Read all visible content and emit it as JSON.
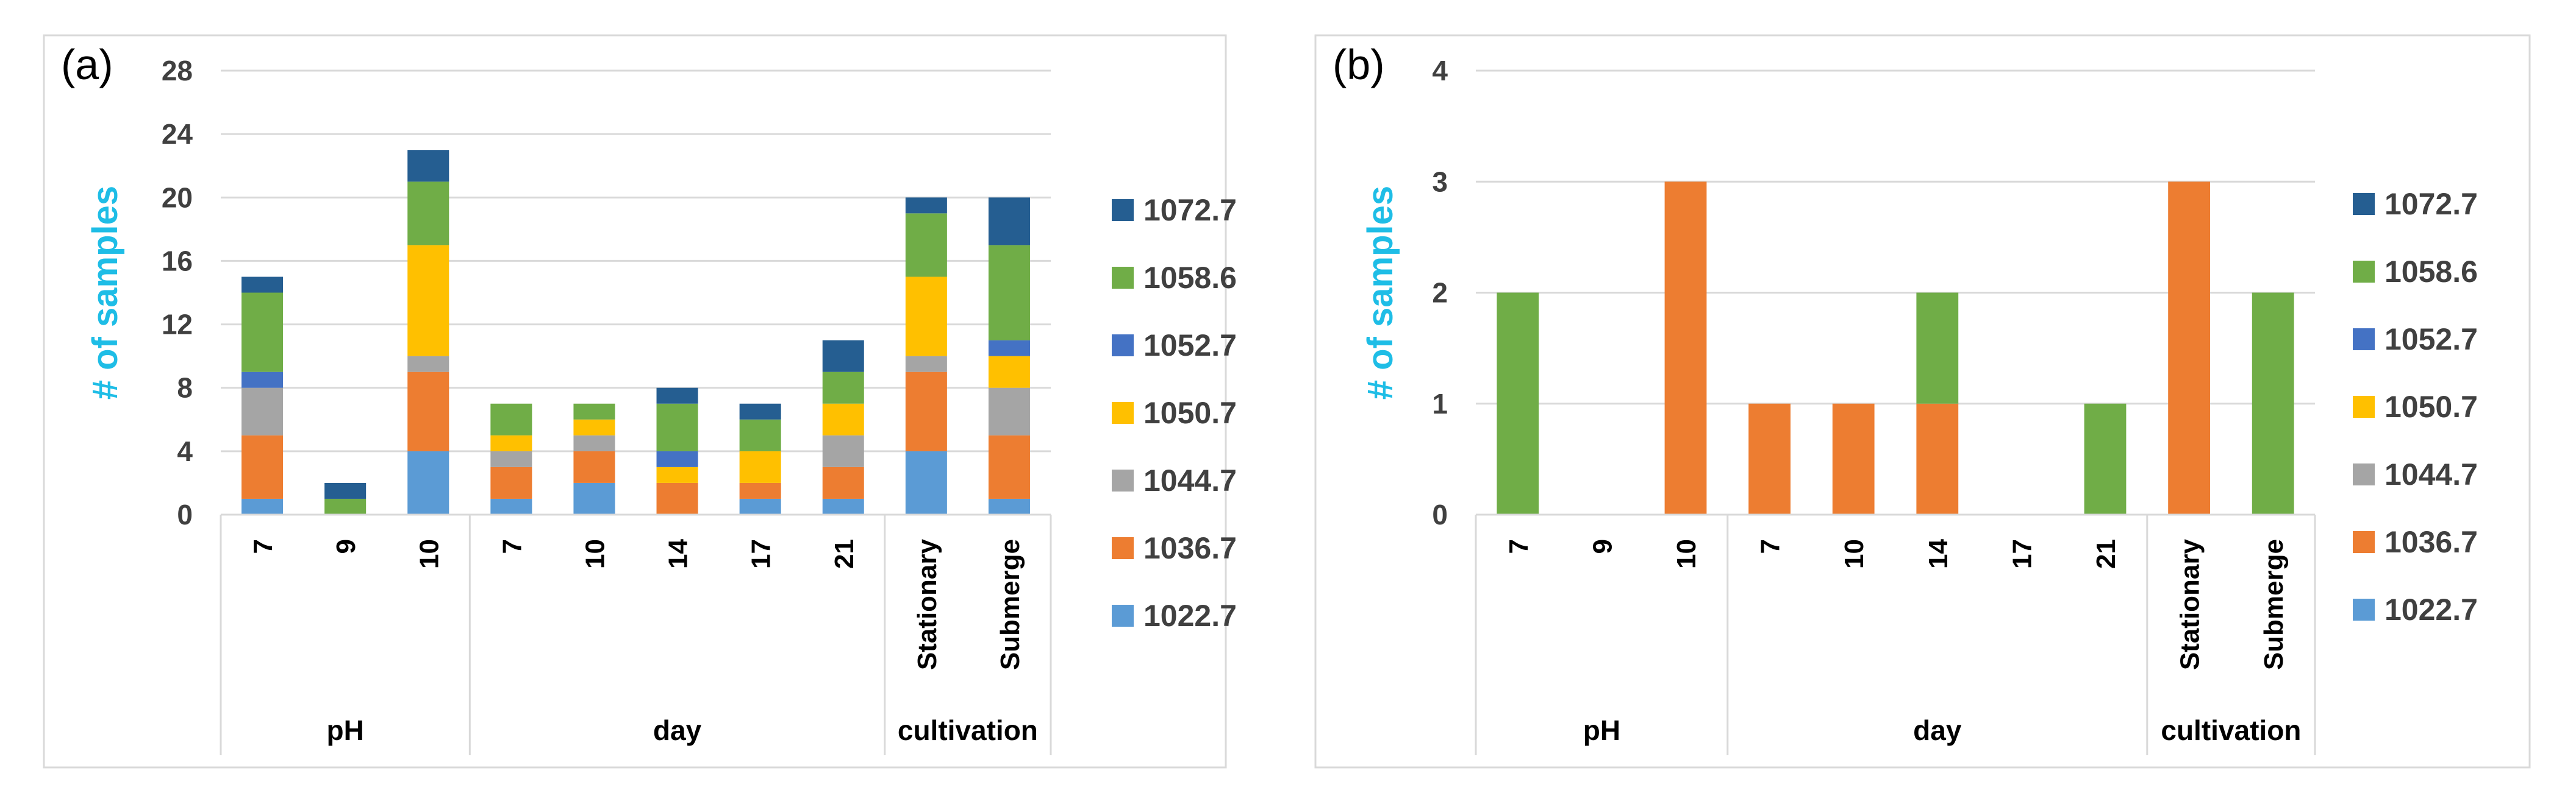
{
  "series_colors": {
    "1022.7": "#5b9bd5",
    "1036.7": "#ed7d31",
    "1044.7": "#a5a5a5",
    "1050.7": "#ffc000",
    "1052.7": "#4472c4",
    "1058.6": "#70ad47",
    "1072.7": "#255e91"
  },
  "chart_data": [
    {
      "panel_label": "(a)",
      "type": "bar",
      "stacked": true,
      "ylabel": "# of samples",
      "ylim": [
        0,
        28
      ],
      "yticks": [
        0,
        4,
        8,
        12,
        16,
        20,
        24,
        28
      ],
      "grid": true,
      "legend_position": "right",
      "categories": [
        "7",
        "9",
        "10",
        "7",
        "10",
        "14",
        "17",
        "21",
        "Stationary",
        "Submerge"
      ],
      "groups": [
        {
          "label": "pH",
          "span": 3
        },
        {
          "label": "day",
          "span": 5
        },
        {
          "label": "cultivation",
          "span": 2
        }
      ],
      "series": [
        {
          "name": "1022.7",
          "values": [
            1,
            0,
            4,
            1,
            2,
            0,
            1,
            1,
            4,
            1
          ]
        },
        {
          "name": "1036.7",
          "values": [
            4,
            0,
            5,
            2,
            2,
            2,
            1,
            2,
            5,
            4
          ]
        },
        {
          "name": "1044.7",
          "values": [
            3,
            0,
            1,
            1,
            1,
            0,
            0,
            2,
            1,
            3
          ]
        },
        {
          "name": "1050.7",
          "values": [
            0,
            0,
            7,
            1,
            1,
            1,
            2,
            2,
            5,
            2
          ]
        },
        {
          "name": "1052.7",
          "values": [
            1,
            0,
            0,
            0,
            0,
            1,
            0,
            0,
            0,
            1
          ]
        },
        {
          "name": "1058.6",
          "values": [
            5,
            1,
            4,
            2,
            1,
            3,
            2,
            2,
            4,
            6
          ]
        },
        {
          "name": "1072.7",
          "values": [
            1,
            1,
            2,
            0,
            0,
            1,
            1,
            2,
            1,
            3
          ]
        }
      ],
      "legend_order": [
        "1072.7",
        "1058.6",
        "1052.7",
        "1050.7",
        "1044.7",
        "1036.7",
        "1022.7"
      ]
    },
    {
      "panel_label": "(b)",
      "type": "bar",
      "stacked": true,
      "ylabel": "# of samples",
      "ylim": [
        0,
        4
      ],
      "yticks": [
        0,
        1,
        2,
        3,
        4
      ],
      "grid": true,
      "legend_position": "right",
      "categories": [
        "7",
        "9",
        "10",
        "7",
        "10",
        "14",
        "17",
        "21",
        "Stationary",
        "Submerge"
      ],
      "groups": [
        {
          "label": "pH",
          "span": 3
        },
        {
          "label": "day",
          "span": 5
        },
        {
          "label": "cultivation",
          "span": 2
        }
      ],
      "series": [
        {
          "name": "1022.7",
          "values": [
            0,
            0,
            0,
            0,
            0,
            0,
            0,
            0,
            0,
            0
          ]
        },
        {
          "name": "1036.7",
          "values": [
            0,
            0,
            3,
            1,
            1,
            1,
            0,
            0,
            3,
            0
          ]
        },
        {
          "name": "1044.7",
          "values": [
            0,
            0,
            0,
            0,
            0,
            0,
            0,
            0,
            0,
            0
          ]
        },
        {
          "name": "1050.7",
          "values": [
            0,
            0,
            0,
            0,
            0,
            0,
            0,
            0,
            0,
            0
          ]
        },
        {
          "name": "1052.7",
          "values": [
            0,
            0,
            0,
            0,
            0,
            0,
            0,
            0,
            0,
            0
          ]
        },
        {
          "name": "1058.6",
          "values": [
            2,
            0,
            0,
            0,
            0,
            1,
            0,
            1,
            0,
            2
          ]
        },
        {
          "name": "1072.7",
          "values": [
            0,
            0,
            0,
            0,
            0,
            0,
            0,
            0,
            0,
            0
          ]
        }
      ],
      "legend_order": [
        "1072.7",
        "1058.6",
        "1052.7",
        "1050.7",
        "1044.7",
        "1036.7",
        "1022.7"
      ]
    }
  ]
}
